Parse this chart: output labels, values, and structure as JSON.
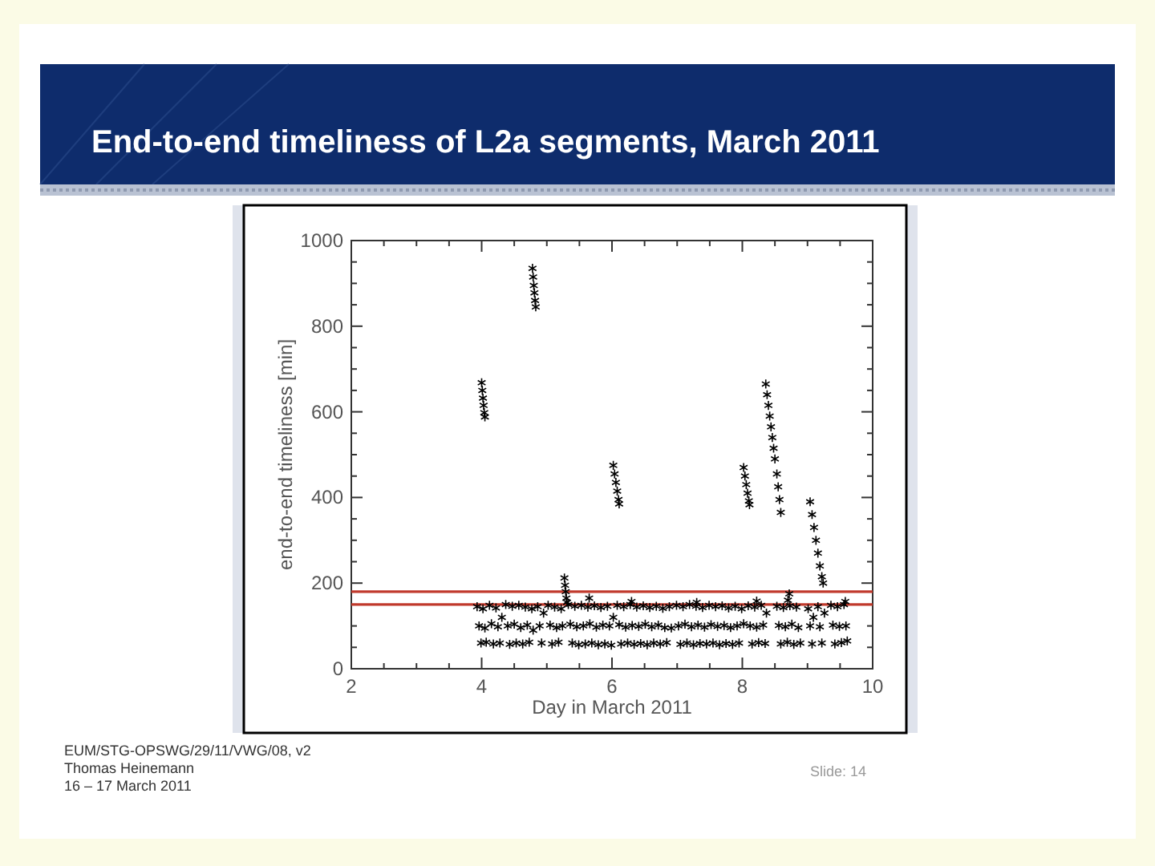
{
  "chart_data": {
    "type": "scatter",
    "title": "End-to-end timeliness of L2a segments, March 2011",
    "xlabel": "Day in March 2011",
    "ylabel": "end-to-end timeliness [min]",
    "annotations": [
      "EUM/STG-OPSWG/29/11/VWG/08, v2",
      "Thomas Heinemann",
      "16 – 17 March 2011",
      "Slide: 14"
    ],
    "series": [
      {
        "color": "#000000",
        "x": [
          3.93,
          3.96,
          3.99,
          4.02,
          4.05,
          4.07,
          4.12,
          4.15,
          4.18,
          4.22,
          4.25,
          4.28,
          4.31,
          4.37,
          4.4,
          4.43,
          4.47,
          4.5,
          4.53,
          4.57,
          4.6,
          4.63,
          4.67,
          4.7,
          4.73,
          4.77,
          4.79,
          4.86,
          4.89,
          4.92,
          4.95,
          5.02,
          5.05,
          5.08,
          5.12,
          5.15,
          5.18,
          5.22,
          5.24,
          5.33,
          5.36,
          5.39,
          5.43,
          5.46,
          5.49,
          5.53,
          5.56,
          5.59,
          5.63,
          5.66,
          5.69,
          5.73,
          5.76,
          5.79,
          5.83,
          5.86,
          5.89,
          5.93,
          5.96,
          5.99,
          6.02,
          6.08,
          6.11,
          6.14,
          6.18,
          6.21,
          6.24,
          6.28,
          6.31,
          6.34,
          6.38,
          6.41,
          6.44,
          6.48,
          6.51,
          6.54,
          6.58,
          6.61,
          6.64,
          6.68,
          6.71,
          6.74,
          6.78,
          6.81,
          6.84,
          6.88,
          6.91,
          6.99,
          7.02,
          7.05,
          7.09,
          7.12,
          7.15,
          7.19,
          7.22,
          7.25,
          7.29,
          7.32,
          7.35,
          7.39,
          7.42,
          7.45,
          7.49,
          7.52,
          7.55,
          7.59,
          7.62,
          7.65,
          7.69,
          7.72,
          7.75,
          7.79,
          7.82,
          7.85,
          7.89,
          7.92,
          7.95,
          7.99,
          8.02,
          8.09,
          8.12,
          8.15,
          8.19,
          8.22,
          8.25,
          8.29,
          8.32,
          8.35,
          8.37,
          8.53,
          8.56,
          8.59,
          8.63,
          8.66,
          8.69,
          8.73,
          8.76,
          8.79,
          8.83,
          8.86,
          8.89,
          9.01,
          9.04,
          9.07,
          9.09,
          9.16,
          9.19,
          9.22,
          9.26,
          9.36,
          9.39,
          9.42,
          9.46,
          9.49,
          9.52,
          9.56,
          9.59,
          9.61
        ],
        "values": [
          145,
          100,
          60,
          140,
          95,
          62,
          148,
          105,
          58,
          142,
          98,
          60,
          120,
          150,
          100,
          57,
          146,
          104,
          60,
          148,
          96,
          58,
          144,
          102,
          62,
          140,
          90,
          145,
          100,
          60,
          130,
          148,
          102,
          58,
          144,
          96,
          62,
          140,
          100,
          150,
          104,
          60,
          146,
          98,
          56,
          148,
          100,
          58,
          144,
          105,
          60,
          147,
          97,
          56,
          143,
          102,
          58,
          146,
          100,
          55,
          120,
          148,
          103,
          58,
          145,
          97,
          60,
          150,
          101,
          57,
          144,
          99,
          59,
          147,
          104,
          56,
          143,
          98,
          60,
          146,
          102,
          58,
          141,
          96,
          61,
          145,
          95,
          148,
          100,
          57,
          145,
          104,
          60,
          150,
          98,
          56,
          146,
          102,
          59,
          143,
          97,
          58,
          148,
          103,
          60,
          145,
          99,
          56,
          147,
          101,
          59,
          142,
          96,
          57,
          146,
          100,
          60,
          140,
          105,
          147,
          100,
          58,
          144,
          97,
          61,
          148,
          102,
          59,
          130,
          146,
          101,
          58,
          143,
          98,
          62,
          147,
          104,
          57,
          144,
          96,
          60,
          140,
          100,
          58,
          120,
          145,
          98,
          60,
          130,
          148,
          102,
          58,
          145,
          99,
          61,
          150,
          100,
          65
        ]
      },
      {
        "color": "#000000",
        "x": [
          4.0,
          4.01,
          4.02,
          4.03,
          4.04,
          4.05,
          4.78,
          4.79,
          4.8,
          4.81,
          4.82,
          4.83,
          5.27,
          5.28,
          5.29,
          5.3,
          5.31,
          5.65,
          6.02,
          6.04,
          6.06,
          6.08,
          6.1,
          6.11,
          6.3,
          7.3,
          8.02,
          8.04,
          8.06,
          8.08,
          8.1,
          8.11,
          8.22,
          8.36,
          8.38,
          8.4,
          8.42,
          8.44,
          8.46,
          8.48,
          8.5,
          8.53,
          8.55,
          8.57,
          8.59,
          8.7,
          8.72,
          9.04,
          9.07,
          9.1,
          9.13,
          9.16,
          9.19,
          9.22,
          9.24,
          9.58
        ],
        "values": [
          668,
          650,
          632,
          615,
          598,
          588,
          935,
          915,
          895,
          878,
          860,
          845,
          212,
          195,
          180,
          165,
          155,
          165,
          475,
          455,
          435,
          415,
          395,
          385,
          157,
          155,
          470,
          450,
          430,
          410,
          392,
          383,
          158,
          665,
          640,
          615,
          590,
          565,
          540,
          515,
          490,
          455,
          425,
          395,
          365,
          160,
          175,
          390,
          360,
          330,
          300,
          270,
          240,
          215,
          200,
          157
        ]
      }
    ],
    "xlim": [
      2,
      10
    ],
    "ylim": [
      0,
      1000
    ],
    "xticks": [
      2,
      {
        "value": 2.5,
        "label": null
      },
      {
        "value": 3,
        "label": null
      },
      {
        "value": 3.5,
        "label": null
      },
      4,
      {
        "value": 4.5,
        "label": null
      },
      {
        "value": 5,
        "label": null
      },
      {
        "value": 5.5,
        "label": null
      },
      6,
      {
        "value": 6.5,
        "label": null
      },
      {
        "value": 7,
        "label": null
      },
      {
        "value": 7.5,
        "label": null
      },
      8,
      {
        "value": 8.5,
        "label": null
      },
      {
        "value": 9,
        "label": null
      },
      {
        "value": 9.5,
        "label": null
      },
      10
    ],
    "yticks": [
      0,
      {
        "value": 50,
        "label": null
      },
      {
        "value": 100,
        "label": null
      },
      {
        "value": 150,
        "label": null
      },
      200,
      {
        "value": 250,
        "label": null
      },
      {
        "value": 300,
        "label": null
      },
      {
        "value": 350,
        "label": null
      },
      400,
      {
        "value": 450,
        "label": null
      },
      {
        "value": 500,
        "label": null
      },
      {
        "value": 550,
        "label": null
      },
      600,
      {
        "value": 650,
        "label": null
      },
      {
        "value": 700,
        "label": null
      },
      {
        "value": 750,
        "label": null
      },
      800,
      {
        "value": 850,
        "label": null
      },
      {
        "value": 900,
        "label": null
      },
      {
        "value": 950,
        "label": null
      },
      1000
    ],
    "ref_lines": [
      {
        "axis": "y",
        "value": 180,
        "color": "#c0392b"
      },
      {
        "axis": "y",
        "value": 150,
        "color": "#c0392b"
      }
    ],
    "marker": "cross"
  }
}
